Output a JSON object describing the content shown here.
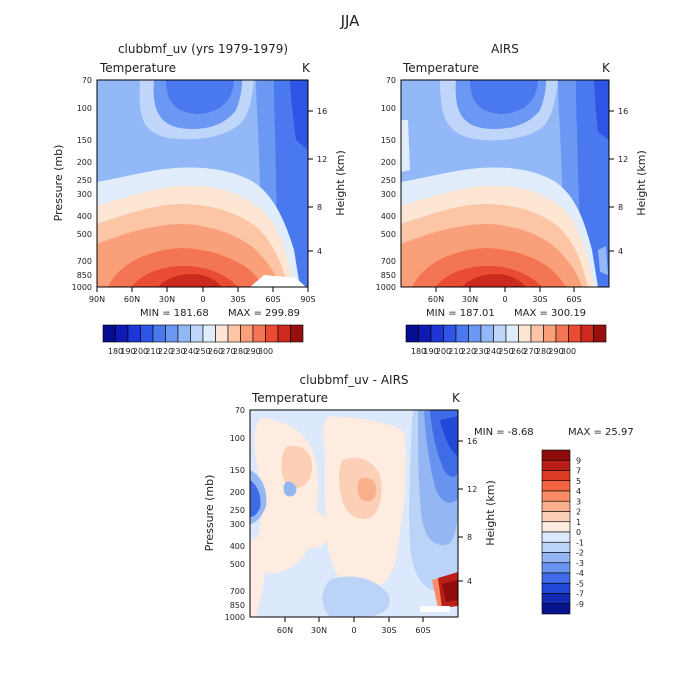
{
  "figure": {
    "title": "JJA"
  },
  "chart_data": [
    {
      "type": "heatmap",
      "panel_title": "clubbmf_uv (yrs 1979-1979)",
      "left_label": "Temperature",
      "units": "K",
      "ylabel": "Pressure (mb)",
      "ylabel_right": "Height (km)",
      "x_ticks": [
        "90N",
        "60N",
        "30N",
        "0",
        "30S",
        "60S",
        "90S"
      ],
      "x_tick_values": [
        90,
        60,
        30,
        0,
        -30,
        -60,
        -90
      ],
      "xlim": [
        90,
        -90
      ],
      "y_ticks": [
        "70",
        "100",
        "150",
        "200",
        "250",
        "300",
        "400",
        "500",
        "700",
        "850",
        "1000"
      ],
      "y_tick_values": [
        70,
        100,
        150,
        200,
        250,
        300,
        400,
        500,
        700,
        850,
        1000
      ],
      "ylim": [
        70,
        1000
      ],
      "y_scale": "log",
      "height_ticks": [
        "4",
        "8",
        "12",
        "16"
      ],
      "height_tick_values": [
        4,
        8,
        12,
        16
      ],
      "min_label": "MIN = 181.68",
      "max_label": "MAX = 299.89",
      "min": 181.68,
      "max": 299.89,
      "colorbar_labels": [
        "180",
        "190",
        "200",
        "210",
        "220",
        "230",
        "240",
        "250",
        "260",
        "270",
        "280",
        "290",
        "300"
      ],
      "colorbar_values": [
        180,
        190,
        200,
        210,
        220,
        230,
        240,
        250,
        260,
        270,
        280,
        290,
        300
      ],
      "colorbar_colors": [
        "#060c8f",
        "#0f1ab5",
        "#1f35d6",
        "#2f55e6",
        "#4a78ee",
        "#6b98f3",
        "#93b8f7",
        "#bfd5fa",
        "#e2edfc",
        "#fde6d4",
        "#fcc6a6",
        "#f9a07a",
        "#f47553",
        "#e84c33",
        "#cc2a1e",
        "#980f10"
      ],
      "colorbar_orientation": "horizontal"
    },
    {
      "type": "heatmap",
      "panel_title": "AIRS",
      "left_label": "Temperature",
      "units": "K",
      "ylabel_right": "Height (km)",
      "x_ticks": [
        "60N",
        "30N",
        "0",
        "30S",
        "60S"
      ],
      "x_tick_values": [
        60,
        30,
        0,
        -30,
        -60
      ],
      "xlim": [
        90,
        -90
      ],
      "y_ticks": [
        "70",
        "100",
        "150",
        "200",
        "250",
        "300",
        "400",
        "500",
        "700",
        "850",
        "1000"
      ],
      "y_tick_values": [
        70,
        100,
        150,
        200,
        250,
        300,
        400,
        500,
        700,
        850,
        1000
      ],
      "ylim": [
        70,
        1000
      ],
      "y_scale": "log",
      "height_ticks": [
        "4",
        "8",
        "12",
        "16"
      ],
      "height_tick_values": [
        4,
        8,
        12,
        16
      ],
      "min_label": "MIN = 187.01",
      "max_label": "MAX = 300.19",
      "min": 187.01,
      "max": 300.19,
      "colorbar_labels": [
        "180",
        "190",
        "200",
        "210",
        "220",
        "230",
        "240",
        "250",
        "260",
        "270",
        "280",
        "290",
        "300"
      ],
      "colorbar_values": [
        180,
        190,
        200,
        210,
        220,
        230,
        240,
        250,
        260,
        270,
        280,
        290,
        300
      ],
      "colorbar_colors": [
        "#060c8f",
        "#0f1ab5",
        "#1f35d6",
        "#2f55e6",
        "#4a78ee",
        "#6b98f3",
        "#93b8f7",
        "#bfd5fa",
        "#e2edfc",
        "#fde6d4",
        "#fcc6a6",
        "#f9a07a",
        "#f47553",
        "#e84c33",
        "#cc2a1e",
        "#980f10"
      ],
      "colorbar_orientation": "horizontal"
    },
    {
      "type": "heatmap",
      "panel_title": "clubbmf_uv - AIRS",
      "left_label": "Temperature",
      "units": "K",
      "ylabel": "Pressure (mb)",
      "ylabel_right": "Height (km)",
      "x_ticks": [
        "60N",
        "30N",
        "0",
        "30S",
        "60S"
      ],
      "x_tick_values": [
        60,
        30,
        0,
        -30,
        -60
      ],
      "xlim": [
        90,
        -90
      ],
      "y_ticks": [
        "70",
        "100",
        "150",
        "200",
        "250",
        "300",
        "400",
        "500",
        "700",
        "850",
        "1000"
      ],
      "y_tick_values": [
        70,
        100,
        150,
        200,
        250,
        300,
        400,
        500,
        700,
        850,
        1000
      ],
      "ylim": [
        70,
        1000
      ],
      "y_scale": "log",
      "height_ticks": [
        "4",
        "8",
        "12",
        "16"
      ],
      "height_tick_values": [
        4,
        8,
        12,
        16
      ],
      "min_label": "MIN = -8.68",
      "max_label": "MAX = 25.97",
      "min": -8.68,
      "max": 25.97,
      "colorbar_labels": [
        "9",
        "7",
        "5",
        "4",
        "3",
        "2",
        "1",
        "0",
        "-1",
        "-2",
        "-3",
        "-4",
        "-5",
        "-7",
        "-9"
      ],
      "colorbar_values": [
        9,
        7,
        5,
        4,
        3,
        2,
        1,
        0,
        -1,
        -2,
        -3,
        -4,
        -5,
        -7,
        -9
      ],
      "colorbar_colors": [
        "#8e0c0c",
        "#bb1e16",
        "#dd3a23",
        "#f26441",
        "#f98c65",
        "#fbb08d",
        "#fcd0b6",
        "#fdecdf",
        "#dce8fb",
        "#bcd3f8",
        "#94b6f3",
        "#6893ee",
        "#3f6ce6",
        "#2148d6",
        "#1129b3",
        "#08138e"
      ],
      "colorbar_orientation": "vertical"
    }
  ]
}
